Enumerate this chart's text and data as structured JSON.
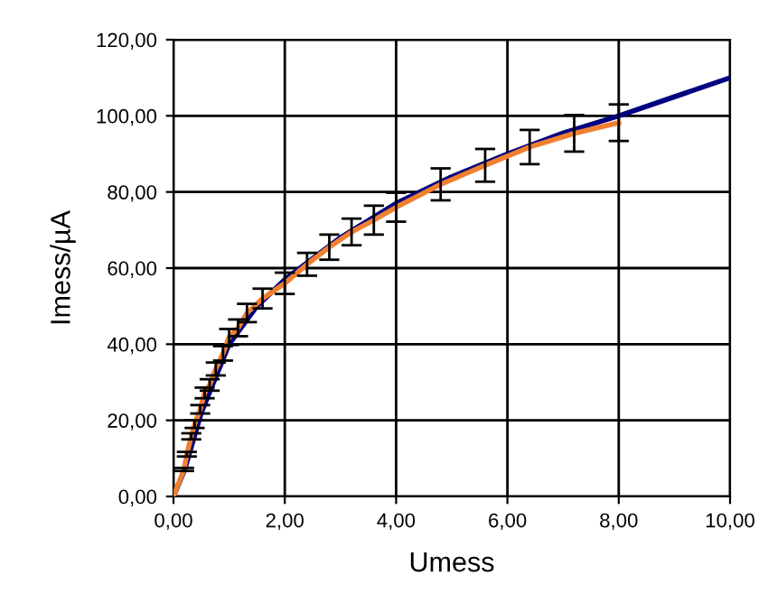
{
  "chart_data": {
    "type": "line",
    "xlabel": "Umess",
    "ylabel": "Imess/µA",
    "xlim": [
      0,
      10
    ],
    "ylim": [
      0,
      120
    ],
    "xticks": [
      {
        "value": 0,
        "label": "0,00"
      },
      {
        "value": 2,
        "label": "2,00"
      },
      {
        "value": 4,
        "label": "4,00"
      },
      {
        "value": 6,
        "label": "6,00"
      },
      {
        "value": 8,
        "label": "8,00"
      },
      {
        "value": 10,
        "label": "10,00"
      }
    ],
    "yticks": [
      {
        "value": 0,
        "label": "0,00"
      },
      {
        "value": 20,
        "label": "20,00"
      },
      {
        "value": 40,
        "label": "40,00"
      },
      {
        "value": 60,
        "label": "60,00"
      },
      {
        "value": 80,
        "label": "80,00"
      },
      {
        "value": 100,
        "label": "100,00"
      },
      {
        "value": 120,
        "label": "120,00"
      }
    ],
    "grid": true,
    "marker": "none",
    "line_style": "solid",
    "series": [
      {
        "color": "#000080",
        "x": [
          0,
          0.2,
          0.5,
          1,
          1.5,
          2,
          3,
          4,
          5,
          6,
          7,
          8,
          9,
          10
        ],
        "values": [
          0,
          7,
          22,
          40,
          50,
          57,
          68,
          77,
          84,
          90,
          95.5,
          100,
          105,
          110
        ]
      },
      {
        "color": "#f08030",
        "x": [
          0,
          0.19,
          0.24,
          0.32,
          0.38,
          0.48,
          0.56,
          0.65,
          0.76,
          0.89,
          1.0,
          1.16,
          1.32,
          1.6,
          2.0,
          2.4,
          2.8,
          3.2,
          3.6,
          4.0,
          4.8,
          5.6,
          6.4,
          7.2,
          8.0
        ],
        "values": [
          0,
          7.1,
          11.1,
          15.8,
          19,
          22.9,
          27.2,
          29.3,
          33.5,
          37.6,
          41.9,
          44.3,
          48.2,
          52,
          56,
          61,
          65.5,
          69.5,
          72.6,
          76,
          82,
          87,
          91.8,
          95.4,
          98.2
        ],
        "errors": [
          null,
          0.4,
          0.6,
          0.8,
          1,
          1.1,
          1.4,
          1.5,
          1.7,
          1.9,
          2.1,
          2.2,
          2.4,
          2.6,
          2.8,
          3,
          3.3,
          3.5,
          3.8,
          3.8,
          4.2,
          4.3,
          4.5,
          4.8,
          4.8
        ]
      }
    ]
  }
}
